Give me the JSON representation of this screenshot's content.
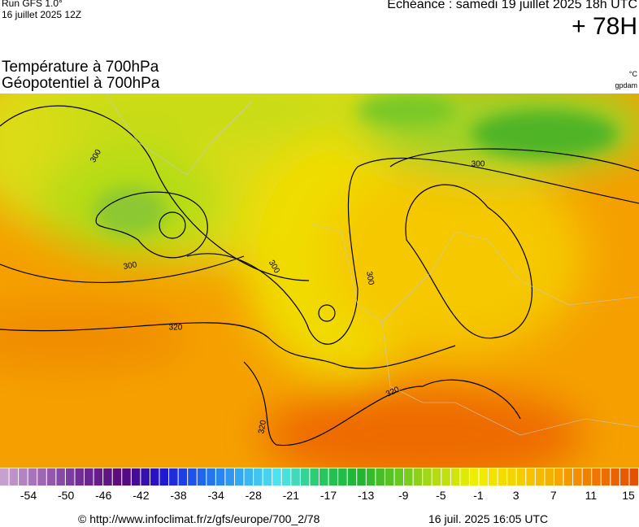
{
  "header": {
    "run": "Run GFS 1.0°",
    "run_date": "16 juillet 2025 12Z",
    "forecast": "Echéance : samedi 19 juillet 2025 18h UTC",
    "lead": "+ 78H",
    "title_1": "Température à 700hPa",
    "title_2": "Géopotentiel à 700hPa",
    "unit_1": "°C",
    "unit_2": "gpdam"
  },
  "contour_labels": [
    "300",
    "300",
    "300",
    "300",
    "300",
    "320",
    "320",
    "320"
  ],
  "colorbar": {
    "ticks": [
      "-54",
      "-50",
      "-46",
      "-42",
      "-38",
      "-34",
      "-28",
      "-21",
      "-17",
      "-13",
      "-9",
      "-5",
      "-1",
      "3",
      "7",
      "11",
      "15"
    ],
    "colors": [
      "#c8a0d0",
      "#9c64b4",
      "#6e2896",
      "#5a0a78",
      "#1e14d2",
      "#1e64f0",
      "#32aaf0",
      "#50e6f0",
      "#28c864",
      "#1eb432",
      "#64c81e",
      "#b4dc14",
      "#f0f000",
      "#f5d200",
      "#f5aa00",
      "#f07800",
      "#e65000"
    ]
  },
  "footer": {
    "url": "© http://www.infoclimat.fr/z/gfs/europe/700_2/78",
    "timestamp": "16 juil. 2025 16:05 UTC"
  }
}
